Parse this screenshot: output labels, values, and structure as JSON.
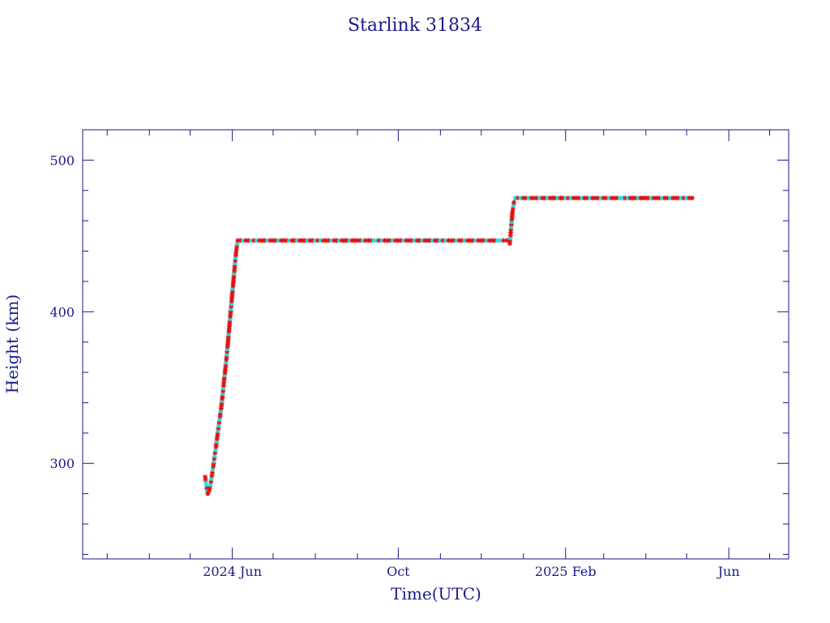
{
  "chart_data": {
    "type": "scatter",
    "title": "Starlink 31834",
    "xlabel": "Time(UTC)",
    "ylabel": "Height (km)",
    "x_ticks": [
      "2024 Jun",
      "Oct",
      "2025 Feb",
      "Jun"
    ],
    "y_ticks": [
      300,
      400,
      500
    ],
    "xlim": [
      "2024-02-12",
      "2025-07-15"
    ],
    "ylim": [
      237,
      520
    ],
    "grid": false,
    "colors": {
      "axis": "#1a1a8c",
      "points_primary": "#e01010",
      "points_secondary": "#22e0e8",
      "line": "#101010"
    },
    "series": [
      {
        "points": [
          [
            "2024-05-12",
            291
          ],
          [
            "2024-05-13",
            285
          ],
          [
            "2024-05-14",
            280
          ],
          [
            "2024-05-15",
            282
          ],
          [
            "2024-05-16",
            286
          ],
          [
            "2024-05-17",
            292
          ],
          [
            "2024-05-18",
            298
          ],
          [
            "2024-05-19",
            305
          ],
          [
            "2024-05-20",
            311
          ],
          [
            "2024-05-21",
            318
          ],
          [
            "2024-05-22",
            325
          ],
          [
            "2024-05-23",
            331
          ],
          [
            "2024-05-24",
            338
          ],
          [
            "2024-05-25",
            346
          ],
          [
            "2024-05-26",
            355
          ],
          [
            "2024-05-27",
            363
          ],
          [
            "2024-05-28",
            372
          ],
          [
            "2024-05-29",
            382
          ],
          [
            "2024-05-30",
            392
          ],
          [
            "2024-05-31",
            402
          ],
          [
            "2024-06-01",
            412
          ],
          [
            "2024-06-02",
            422
          ],
          [
            "2024-06-03",
            432
          ],
          [
            "2024-06-04",
            441
          ],
          [
            "2024-06-05",
            447
          ],
          [
            "2024-06-15",
            447
          ],
          [
            "2024-07-01",
            447
          ],
          [
            "2024-07-15",
            447
          ],
          [
            "2024-08-01",
            447
          ],
          [
            "2024-08-15",
            447
          ],
          [
            "2024-09-01",
            447
          ],
          [
            "2024-09-15",
            447
          ],
          [
            "2024-10-01",
            447
          ],
          [
            "2024-10-15",
            447
          ],
          [
            "2024-11-01",
            447
          ],
          [
            "2024-11-15",
            447
          ],
          [
            "2024-12-01",
            447
          ],
          [
            "2024-12-15",
            447
          ],
          [
            "2024-12-20",
            447
          ],
          [
            "2024-12-22",
            445
          ],
          [
            "2024-12-23",
            456
          ],
          [
            "2024-12-24",
            466
          ],
          [
            "2024-12-25",
            472
          ],
          [
            "2024-12-26",
            475
          ],
          [
            "2025-01-01",
            475
          ],
          [
            "2025-01-15",
            475
          ],
          [
            "2025-02-01",
            475
          ],
          [
            "2025-02-15",
            475
          ],
          [
            "2025-03-01",
            475
          ],
          [
            "2025-03-15",
            475
          ],
          [
            "2025-04-01",
            475
          ],
          [
            "2025-04-15",
            475
          ],
          [
            "2025-05-01",
            475
          ],
          [
            "2025-05-05",
            475
          ]
        ]
      }
    ]
  }
}
